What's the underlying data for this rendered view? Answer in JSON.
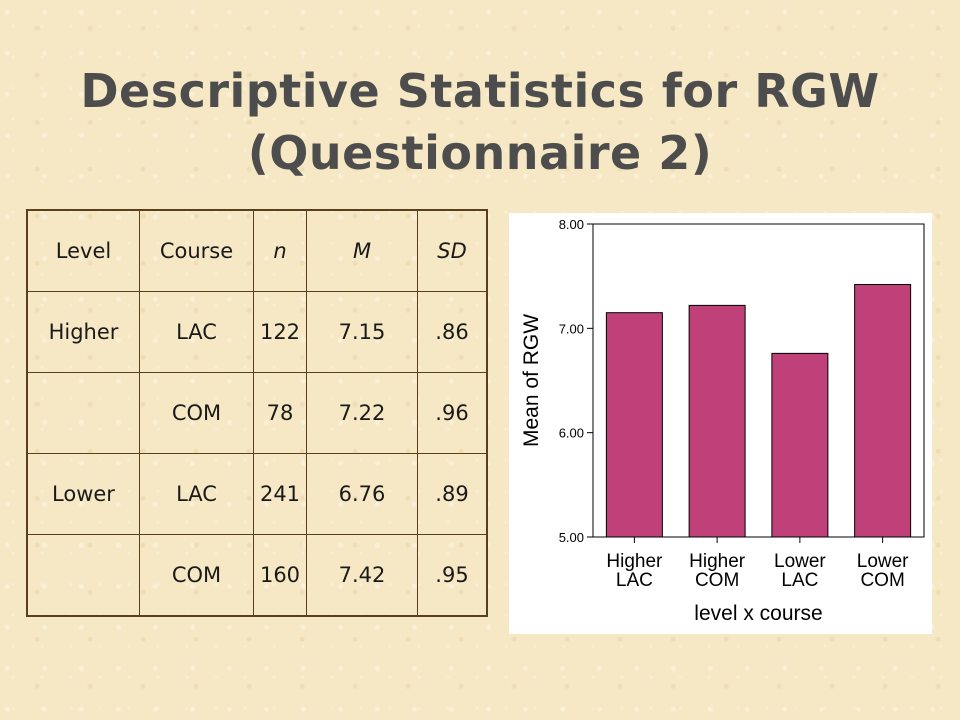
{
  "title": {
    "line1": "Descriptive Statistics for RGW",
    "line2": "(Questionnaire 2)"
  },
  "table": {
    "headers": [
      "Level",
      "Course",
      "n",
      "M",
      "SD"
    ],
    "rows": [
      [
        "Higher",
        "LAC",
        "122",
        "7.15",
        ".86"
      ],
      [
        "",
        "COM",
        "78",
        "7.22",
        ".96"
      ],
      [
        "Lower",
        "LAC",
        "241",
        "6.76",
        ".89"
      ],
      [
        "",
        "COM",
        "160",
        "7.42",
        ".95"
      ]
    ]
  },
  "colors": {
    "background": "#f6e8c4",
    "title": "#4d4d4d",
    "bar": "#c0407a",
    "table_border": "#5a3f1c"
  },
  "chart_data": {
    "type": "bar",
    "categories": [
      [
        "Higher",
        "LAC"
      ],
      [
        "Higher",
        "COM"
      ],
      [
        "Lower",
        "LAC"
      ],
      [
        "Lower",
        "COM"
      ]
    ],
    "values": [
      7.15,
      7.22,
      6.76,
      7.42
    ],
    "ylim": [
      5.0,
      8.0
    ],
    "yticks": [
      "5.00",
      "6.00",
      "7.00",
      "8.00"
    ],
    "xlabel": "level x course",
    "ylabel": "Mean of RGW",
    "grid": false,
    "bar_color": "#c0407a"
  }
}
